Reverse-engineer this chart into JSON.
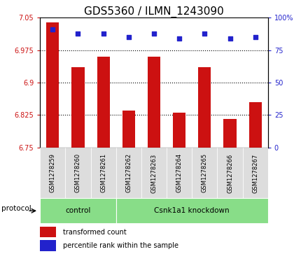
{
  "title": "GDS5360 / ILMN_1243090",
  "samples": [
    "GSM1278259",
    "GSM1278260",
    "GSM1278261",
    "GSM1278262",
    "GSM1278263",
    "GSM1278264",
    "GSM1278265",
    "GSM1278266",
    "GSM1278267"
  ],
  "bar_values": [
    7.04,
    6.935,
    6.96,
    6.835,
    6.96,
    6.83,
    6.935,
    6.815,
    6.855
  ],
  "percentile_values": [
    91,
    88,
    88,
    85,
    88,
    84,
    88,
    84,
    85
  ],
  "ylim_left": [
    6.75,
    7.05
  ],
  "yticks_left": [
    6.75,
    6.825,
    6.9,
    6.975,
    7.05
  ],
  "ylim_right": [
    0,
    100
  ],
  "yticks_right": [
    0,
    25,
    50,
    75,
    100
  ],
  "bar_color": "#cc1111",
  "dot_color": "#2222cc",
  "groups": [
    {
      "label": "control",
      "start": 0,
      "end": 3
    },
    {
      "label": "Csnk1a1 knockdown",
      "start": 3,
      "end": 9
    }
  ],
  "group_color": "#88dd88",
  "sample_bg_color": "#dddddd",
  "protocol_label": "protocol",
  "legend_bar_label": "transformed count",
  "legend_dot_label": "percentile rank within the sample",
  "title_fontsize": 11,
  "tick_label_fontsize": 7,
  "axis_label_color_left": "#cc1111",
  "axis_label_color_right": "#2222cc",
  "grid_color": "#000000",
  "bg_color": "#ffffff",
  "plot_bg_color": "#ffffff"
}
